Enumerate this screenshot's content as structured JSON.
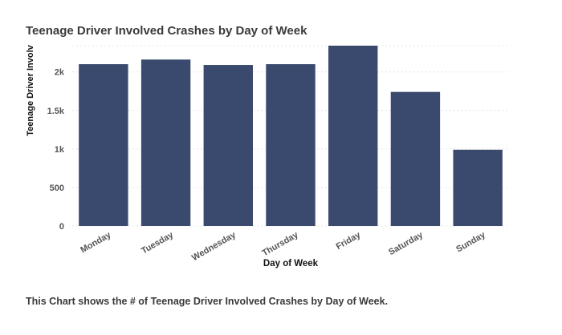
{
  "caption": "This Chart shows the # of Teenage Driver Involved Crashes by Day of Week.",
  "colors": {
    "bar": "#3a4a6e",
    "grid": "#e4e4e4",
    "text": "#3a3a3a",
    "tick": "#555555"
  },
  "chart_data": {
    "type": "bar",
    "title": "Teenage Driver Involved Crashes by Day of Week",
    "xlabel": "Day of Week",
    "ylabel": "Teenage Driver Involv",
    "categories": [
      "Monday",
      "Tuesday",
      "Wednesday",
      "Thursday",
      "Friday",
      "Saturday",
      "Sunday"
    ],
    "values": [
      2100,
      2160,
      2090,
      2100,
      2340,
      1740,
      990
    ],
    "ylim": [
      0,
      2340
    ],
    "yticks": [
      0,
      500,
      1000,
      1500,
      2000
    ],
    "ytick_labels": [
      "0",
      "500",
      "1k",
      "1.5k",
      "2k"
    ],
    "grid": true,
    "legend": "none"
  }
}
